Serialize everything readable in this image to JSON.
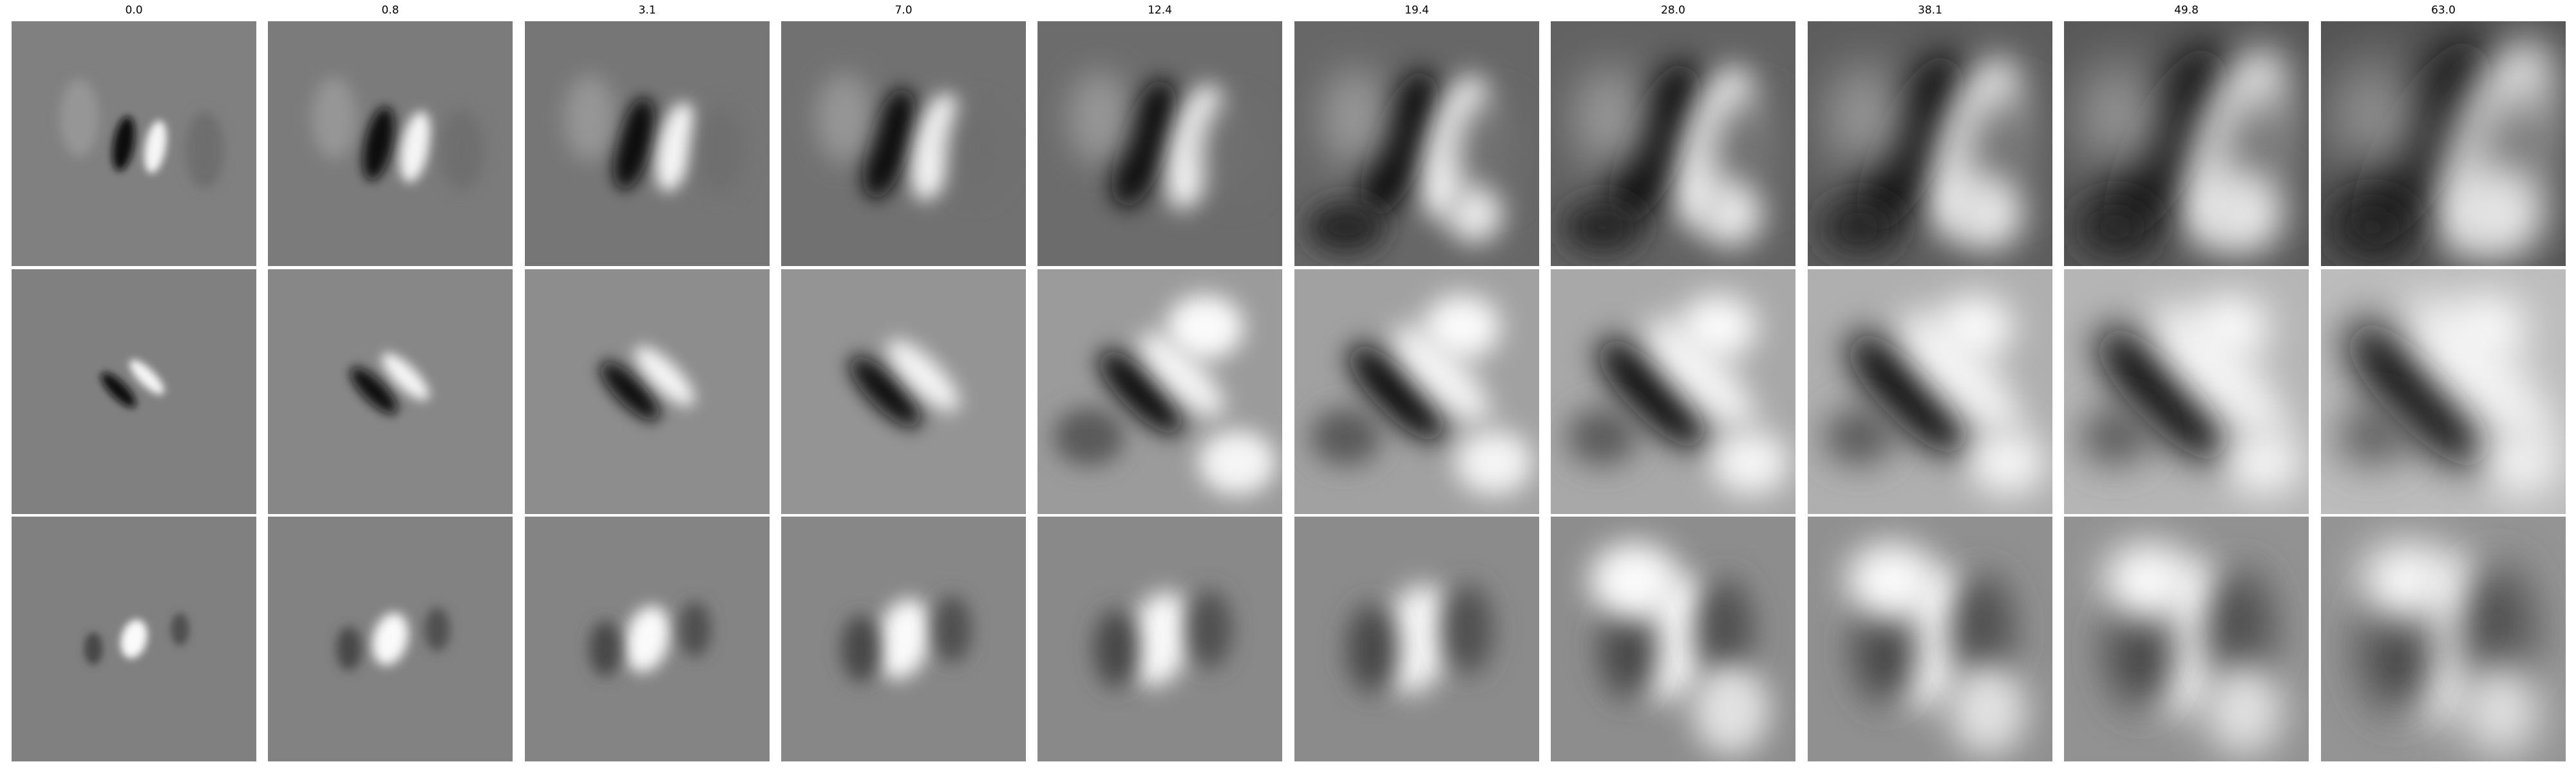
{
  "figure": {
    "column_titles": [
      "0.0",
      "0.8",
      "3.1",
      "7.0",
      "12.4",
      "19.4",
      "28.0",
      "38.1",
      "49.8",
      "63.0"
    ],
    "rows": 3,
    "colormap": "grayscale"
  }
}
